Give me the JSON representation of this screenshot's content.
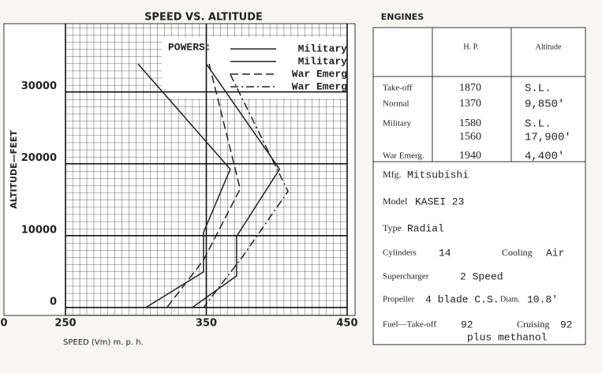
{
  "chart_data": {
    "type": "line",
    "title": "SPEED VS. ALTITUDE",
    "x_label": "SPEED (Vm) m. p. h.",
    "y_label": "ALTITUDE—FEET",
    "corner_label": "0",
    "xlim": [
      250,
      450
    ],
    "ylim": [
      -1100,
      39500
    ],
    "xticks": [
      250,
      350,
      450
    ],
    "yticks": [
      0,
      10000,
      20000,
      30000
    ],
    "grid": true,
    "legend_title": "POWERS:",
    "series": [
      {
        "name": "Military",
        "color": "#222",
        "style": "solid",
        "x": [
          301.5,
          367,
          348,
          348,
          307
        ],
        "values": [
          33900,
          19250,
          10450,
          4950,
          0
        ]
      },
      {
        "name": "Military",
        "color": "#222",
        "style": "solid",
        "x": [
          350,
          402,
          371.5,
          371.5,
          340
        ],
        "values": [
          33900,
          19250,
          9900,
          4400,
          0
        ]
      },
      {
        "name": "War Emerg",
        "color": "#222",
        "style": "dashed",
        "x": [
          352,
          374,
          348,
          322
        ],
        "values": [
          33900,
          16500,
          6600,
          0
        ]
      },
      {
        "name": "War Emerg",
        "color": "#222",
        "style": "dashdot",
        "x": [
          367,
          408,
          376,
          348
        ],
        "values": [
          32450,
          16170,
          7150,
          0
        ]
      }
    ]
  },
  "engines": {
    "title": "ENGINES",
    "columns": [
      "H. P.",
      "Altitude"
    ],
    "rows": [
      [
        "Take-off",
        "1870",
        "S.L."
      ],
      [
        "Normal",
        "1370",
        "9,850'"
      ],
      [
        "Military",
        "1580",
        "S.L."
      ],
      [
        "",
        "1560",
        "17,900'"
      ],
      [
        "War Emerg.",
        "1940",
        "4,400'"
      ]
    ],
    "mfg": [
      "Mfg.",
      "Mitsubishi"
    ],
    "model": [
      "Model",
      "KASEI 23"
    ],
    "type": [
      "Type",
      "Radial"
    ],
    "cylinders": [
      "Cylinders",
      "14"
    ],
    "cooling": [
      "Cooling",
      "Air"
    ],
    "supercharger": [
      "Supercharger",
      "2 Speed"
    ],
    "propeller": [
      "Propeller",
      "4 blade C.S."
    ],
    "diam": [
      "Diam.",
      "10.8'"
    ],
    "fuel": [
      "Fuel—Take-off",
      "92"
    ],
    "cruising": [
      "Cruising",
      "92"
    ],
    "fuel_note": "plus methanol"
  }
}
